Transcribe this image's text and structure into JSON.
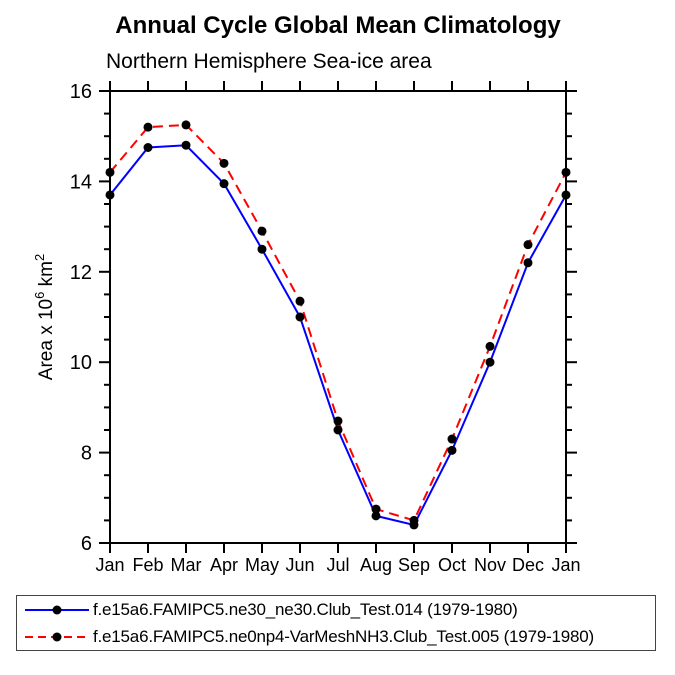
{
  "title": "Annual Cycle Global Mean Climatology",
  "subtitle": "Northern Hemisphere Sea-ice area",
  "chart_data": {
    "type": "line",
    "categories": [
      "Jan",
      "Feb",
      "Mar",
      "Apr",
      "May",
      "Jun",
      "Jul",
      "Aug",
      "Sep",
      "Oct",
      "Nov",
      "Dec",
      "Jan"
    ],
    "series": [
      {
        "name": "f.e15a6.FAMIPC5.ne30_ne30.Club_Test.014 (1979-1980)",
        "color": "#0000ff",
        "line_style": "solid",
        "marker": "filled-circle",
        "marker_color": "#000000",
        "values": [
          13.7,
          14.75,
          14.8,
          13.95,
          12.5,
          11.0,
          8.5,
          6.6,
          6.4,
          8.05,
          10.0,
          12.2,
          13.7
        ]
      },
      {
        "name": "f.e15a6.FAMIPC5.ne0np4-VarMeshNH3.Club_Test.005 (1979-1980)",
        "color": "#ff0000",
        "line_style": "dashed",
        "marker": "filled-circle",
        "marker_color": "#000000",
        "values": [
          14.2,
          15.2,
          15.25,
          14.4,
          12.9,
          11.35,
          8.7,
          6.75,
          6.5,
          8.3,
          10.35,
          12.6,
          14.2
        ]
      }
    ],
    "ylabel": "Area x 10^6 km^2",
    "ylabel_parts": {
      "prefix": "Area x 10",
      "sup1": "6",
      "mid": " km",
      "sup2": "2"
    },
    "ylim": [
      6,
      16
    ],
    "ytick_major": [
      16,
      14,
      12,
      10,
      8,
      6
    ],
    "ytick_minor_step": 0.5,
    "grid": "off",
    "legend_position": "bottom",
    "axis_color": "#000000",
    "background_color": "#ffffff"
  }
}
